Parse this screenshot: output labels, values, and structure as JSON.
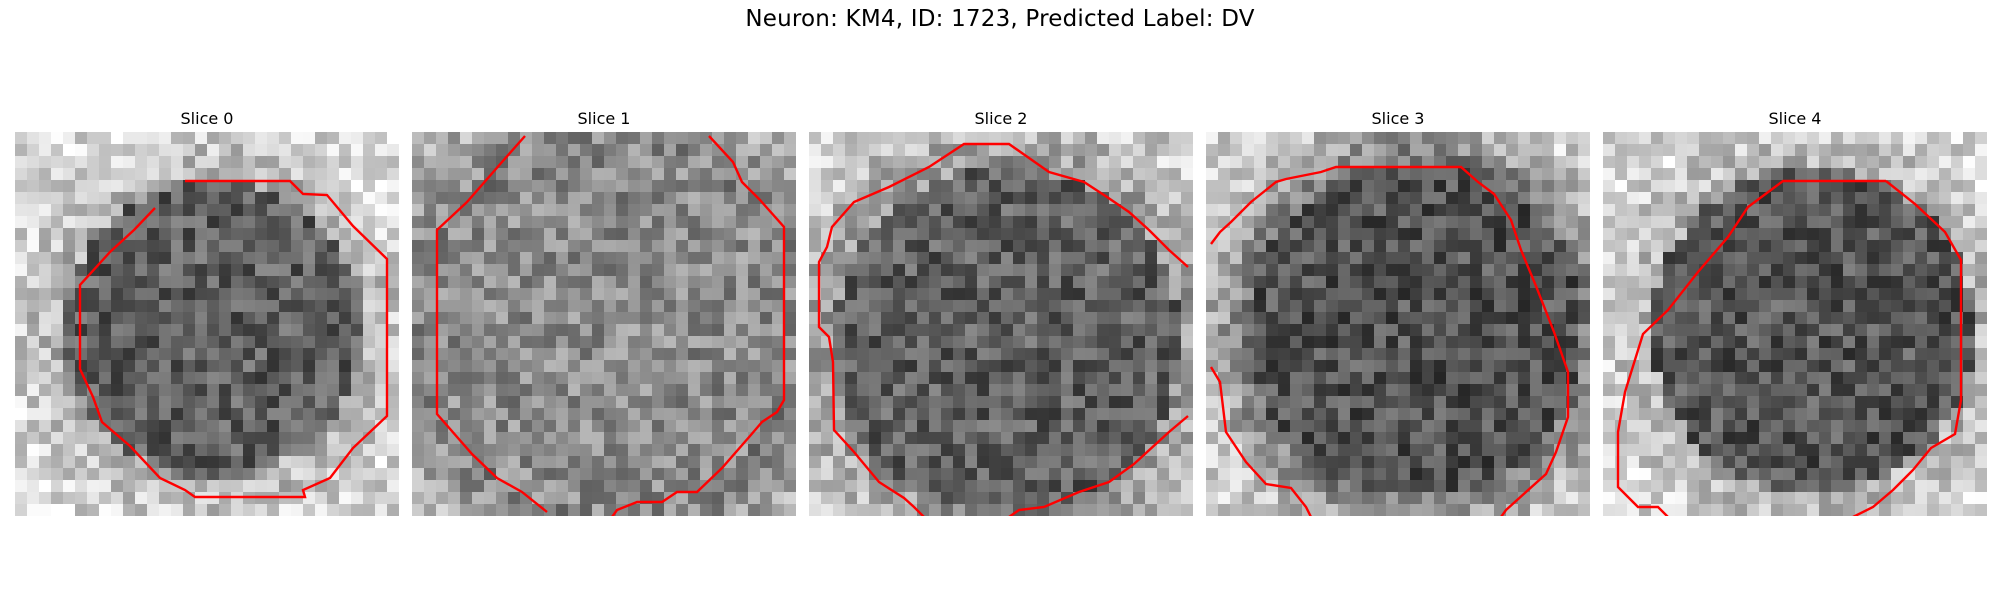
{
  "figure": {
    "title": "Neuron: KM4, ID: 1723, Predicted Label: DV"
  },
  "panels": [
    {
      "title": "Slice 0"
    },
    {
      "title": "Slice 1"
    },
    {
      "title": "Slice 2"
    },
    {
      "title": "Slice 3"
    },
    {
      "title": "Slice 4"
    }
  ],
  "colors": {
    "contour": "#ff0000",
    "background": "#ffffff"
  }
}
